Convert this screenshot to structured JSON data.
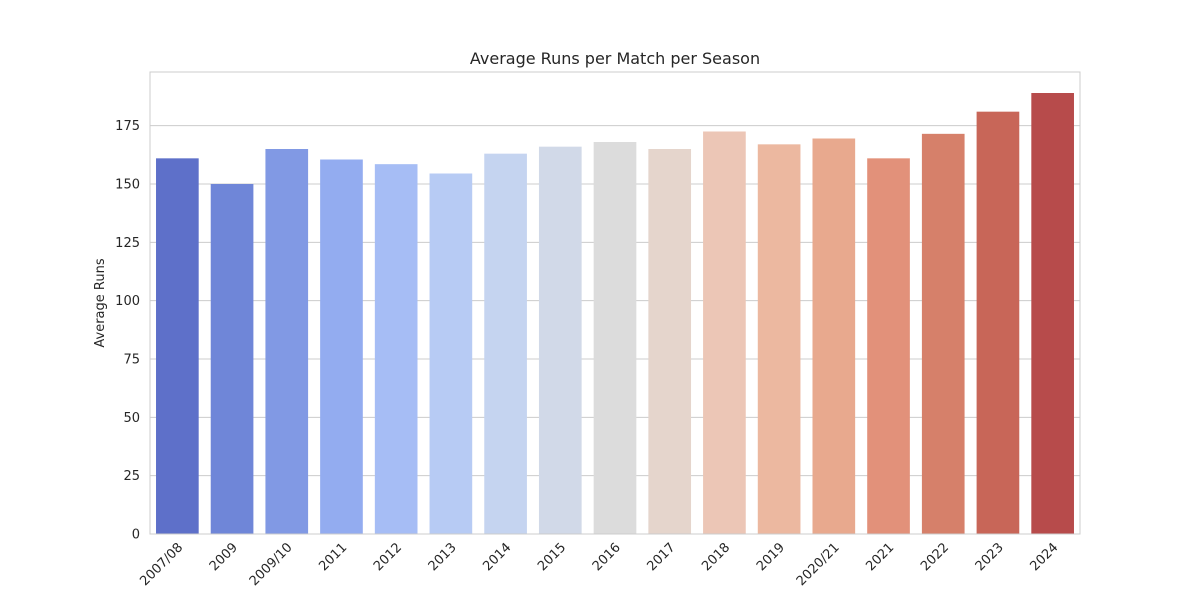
{
  "chart_data": {
    "type": "bar",
    "title": "Average Runs per Match per Season",
    "xlabel": "",
    "ylabel": "Average Runs",
    "categories": [
      "2007/08",
      "2009",
      "2009/10",
      "2011",
      "2012",
      "2013",
      "2014",
      "2015",
      "2016",
      "2017",
      "2018",
      "2019",
      "2020/21",
      "2021",
      "2022",
      "2023",
      "2024"
    ],
    "values": [
      161,
      150,
      165,
      160.5,
      158.5,
      154.5,
      163,
      166,
      168,
      165,
      172.5,
      167,
      169.5,
      161,
      171.5,
      181,
      189
    ],
    "yticks": [
      0,
      25,
      50,
      75,
      100,
      125,
      150,
      175
    ],
    "ylim": [
      0,
      198
    ],
    "grid": "horizontal",
    "colors": [
      "#5e70c9",
      "#6f86d8",
      "#8199e4",
      "#93acf0",
      "#a6bdf5",
      "#b7cbf4",
      "#c5d4f0",
      "#d1d9e8",
      "#dcdcdc",
      "#e5d5cc",
      "#ecc6b6",
      "#ecb8a0",
      "#e8a98e",
      "#e2917a",
      "#d6806a",
      "#c86658",
      "#b74b4b"
    ]
  }
}
